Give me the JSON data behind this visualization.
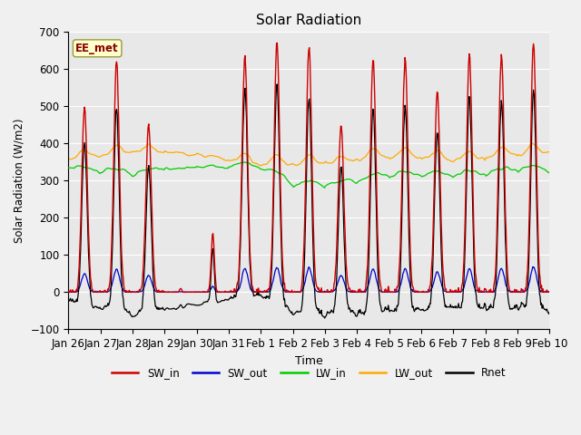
{
  "title": "Solar Radiation",
  "ylabel": "Solar Radiation (W/m2)",
  "xlabel": "Time",
  "ylim": [
    -100,
    700
  ],
  "annotation_text": "EE_met",
  "plot_bg_color": "#e8e8e8",
  "fig_bg_color": "#f0f0f0",
  "line_colors": {
    "SW_in": "#cc0000",
    "SW_out": "#0000cc",
    "LW_in": "#00cc00",
    "LW_out": "#ffaa00",
    "Rnet": "#000000"
  },
  "tick_labels": [
    "Jan 26",
    "Jan 27",
    "Jan 28",
    "Jan 29",
    "Jan 30",
    "Jan 31",
    "Feb 1",
    "Feb 2",
    "Feb 3",
    "Feb 4",
    "Feb 5",
    "Feb 6",
    "Feb 7",
    "Feb 8",
    "Feb 9",
    "Feb 10"
  ],
  "yticks": [
    -100,
    0,
    100,
    200,
    300,
    400,
    500,
    600,
    700
  ],
  "peaks_SW": [
    500,
    620,
    450,
    10,
    160,
    640,
    670,
    660,
    450,
    630,
    630,
    540,
    640,
    640,
    670,
    665
  ],
  "widths_SW": [
    0.085,
    0.085,
    0.085,
    0.035,
    0.048,
    0.085,
    0.085,
    0.085,
    0.085,
    0.085,
    0.085,
    0.085,
    0.085,
    0.085,
    0.085,
    0.085
  ],
  "LW_in_base": [
    330,
    320,
    315,
    330,
    335,
    335,
    330,
    285,
    285,
    295,
    310,
    310,
    310,
    315,
    325,
    325
  ],
  "LW_out_base": [
    360,
    365,
    375,
    380,
    370,
    355,
    345,
    340,
    345,
    355,
    365,
    360,
    355,
    360,
    370,
    375
  ],
  "SW_out_ratio": 0.1,
  "n_days": 15,
  "figsize": [
    6.4,
    4.8
  ],
  "dpi": 100
}
